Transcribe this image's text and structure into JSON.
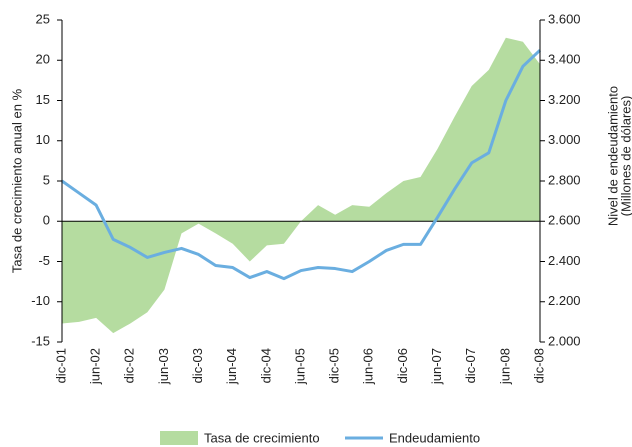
{
  "chart_data": {
    "type": "combo",
    "categories": [
      "dic-01",
      null,
      "jun-02",
      null,
      "dic-02",
      null,
      "jun-03",
      null,
      "dic-03",
      null,
      "jun-04",
      null,
      "dic-04",
      null,
      "jun-05",
      null,
      "dic-05",
      null,
      "jun-06",
      null,
      "dic-06",
      null,
      "jun-07",
      null,
      "dic-07",
      null,
      "jun-08",
      null,
      "dic-08"
    ],
    "ylabel": "Tasa de crecimiento anual en %",
    "y2label": [
      "Nivel de endeudamiento",
      "(Millones de dólares)"
    ],
    "ylim": [
      -15,
      25
    ],
    "yticks": [
      -15,
      -10,
      -5,
      0,
      5,
      10,
      15,
      20,
      25
    ],
    "y2lim": [
      2000,
      3600
    ],
    "y2ticks": [
      {
        "value": 2000,
        "label": "2.000"
      },
      {
        "value": 2200,
        "label": "2.200"
      },
      {
        "value": 2400,
        "label": "2.400"
      },
      {
        "value": 2600,
        "label": "2.600"
      },
      {
        "value": 2800,
        "label": "2.800"
      },
      {
        "value": 3000,
        "label": "3.000"
      },
      {
        "value": 3200,
        "label": "3.200"
      },
      {
        "value": 3400,
        "label": "3.400"
      },
      {
        "value": 3600,
        "label": "3.600"
      }
    ],
    "series": [
      {
        "name": "Tasa de crecimiento",
        "type": "area",
        "color": "#b5dca0",
        "values": [
          -12.7,
          -12.5,
          -12,
          -13.9,
          -12.7,
          -11.3,
          -8.5,
          -1.5,
          -0.3,
          -1.5,
          -2.8,
          -5,
          -3,
          -2.8,
          0,
          2,
          0.8,
          2,
          1.8,
          3.5,
          5,
          5.5,
          9,
          13,
          16.8,
          18.8,
          22.8,
          22.3,
          19.5
        ]
      },
      {
        "name": "Endeudamiento",
        "type": "line",
        "axis": "y2",
        "color": "#6aaee0",
        "values": [
          2800,
          2740,
          2680,
          2510,
          2470,
          2420,
          2445,
          2465,
          2435,
          2380,
          2370,
          2320,
          2350,
          2315,
          2355,
          2370,
          2365,
          2350,
          2400,
          2455,
          2485,
          2485,
          2620,
          2760,
          2890,
          2940,
          3200,
          3370,
          3450
        ]
      }
    ]
  }
}
